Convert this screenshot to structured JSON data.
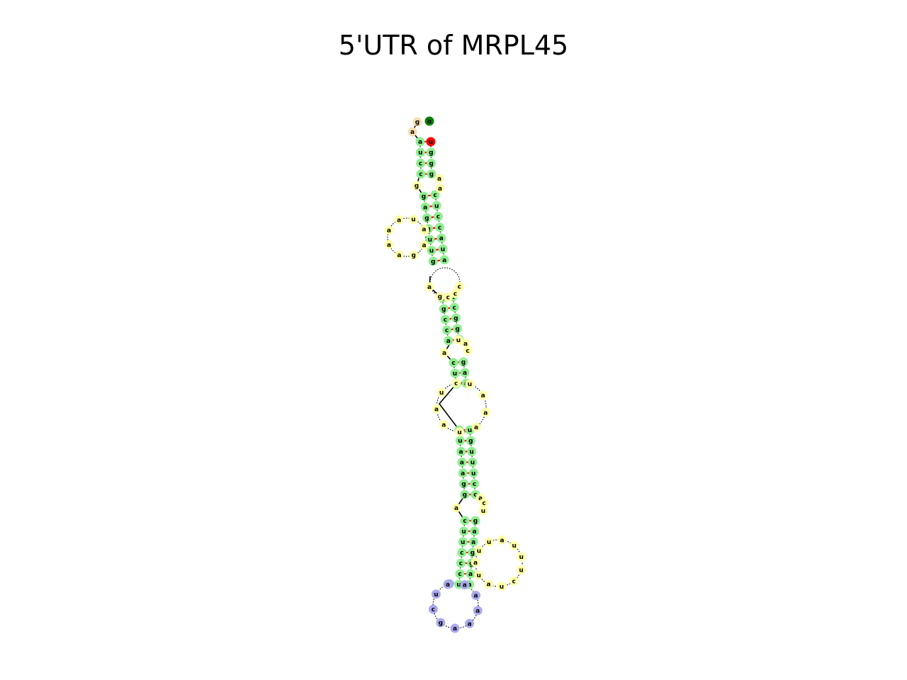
{
  "title": "5'UTR of MRPL45",
  "colors": {
    "stem": "#90ee90",
    "loop": "#ffffaa",
    "hairpin": "#aaaaee",
    "exterior": "#f5deb3",
    "start": "#008000",
    "end": "#ff0000",
    "pair_mark": "#ff0000",
    "backbone": "#000000"
  },
  "sequence_5p_segments": [
    "gaauccg",
    "gcagguu",
    "aaagaacuug",
    "a",
    "ugcca",
    "cuu",
    "uaaa",
    "auaaagg",
    "a",
    "cuucccu",
    "gaaaaagc"
  ],
  "stems": [
    {
      "name": "helix-1",
      "left": [
        "a",
        "u",
        "c",
        "c"
      ],
      "right": [
        "u",
        "g",
        "g",
        "g"
      ]
    },
    {
      "name": "helix-2",
      "left": [
        "g",
        "a",
        "g",
        "g",
        "u",
        "u",
        "g"
      ],
      "right": [
        "c",
        "u",
        "c",
        "c",
        "a",
        "u",
        "a"
      ]
    },
    {
      "name": "helix-3",
      "left": [
        "u",
        "g",
        "c",
        "c",
        "a"
      ],
      "right": [
        "a",
        "c",
        "g",
        "g",
        "u"
      ]
    },
    {
      "name": "helix-4",
      "left": [
        "c",
        "u",
        "u"
      ],
      "right": [
        "g",
        "a",
        "a"
      ]
    },
    {
      "name": "helix-5",
      "left": [
        "a",
        "u",
        "a",
        "a",
        "a",
        "g",
        "g"
      ],
      "right": [
        "u",
        "g",
        "u",
        "u",
        "u",
        "c",
        "c"
      ]
    },
    {
      "name": "helix-6",
      "left": [
        "c",
        "u",
        "u",
        "c",
        "c",
        "c",
        "u"
      ],
      "right": [
        "g",
        "a",
        "a",
        "g",
        "g",
        "a",
        "a"
      ]
    }
  ],
  "loops": [
    {
      "name": "bulge-left-1",
      "bases": [
        "g"
      ]
    },
    {
      "name": "bulge-right-1",
      "bases": [
        "a",
        "a"
      ]
    },
    {
      "name": "internal-loop-side",
      "bases": [
        "c",
        "a",
        "g",
        "a",
        "a",
        "a",
        "a",
        "u",
        "a"
      ]
    },
    {
      "name": "bulge-right-2",
      "bases": [
        "c",
        "c",
        "c",
        "g"
      ]
    },
    {
      "name": "bulge-left-2",
      "bases": [
        "a"
      ]
    },
    {
      "name": "bulge-left-3",
      "bases": [
        "a"
      ]
    },
    {
      "name": "bulge-right-3",
      "bases": [
        "u",
        "a",
        "c"
      ]
    },
    {
      "name": "internal-loop-big",
      "bases": [
        "u",
        "a",
        "a",
        "a",
        "u",
        "a",
        "a",
        "u",
        "c"
      ]
    },
    {
      "name": "bulge-left-4",
      "bases": [
        "a"
      ]
    },
    {
      "name": "bulge-right-4",
      "bases": [
        "a",
        "c",
        "u"
      ]
    },
    {
      "name": "side-loop-lower",
      "bases": [
        "u",
        "u",
        "a",
        "u",
        "u",
        "u",
        "c",
        "u",
        "a",
        "u",
        "a"
      ]
    },
    {
      "name": "hairpin-loop",
      "bases": [
        "g",
        "a",
        "a",
        "a",
        "a",
        "a",
        "g",
        "c",
        "u",
        "a"
      ]
    }
  ],
  "exterior": {
    "five_prime": [
      "a",
      "g",
      "a"
    ],
    "three_prime_end": "u"
  }
}
